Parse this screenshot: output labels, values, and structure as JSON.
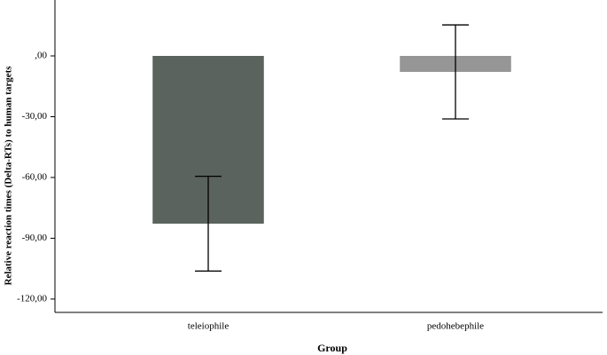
{
  "chart_data": {
    "type": "bar",
    "y_label": "Relative reaction times (Delta-RTs) to human targets",
    "x_label": "Group",
    "categories": [
      "teleiophile",
      "pedohebephile"
    ],
    "values": [
      -82.8,
      -7.9
    ],
    "errors": [
      23.4,
      23.2
    ],
    "colors": [
      "#5a635d",
      "#969696"
    ],
    "ylim": [
      -126.6,
      27.6
    ],
    "yticks": [
      {
        "value": 0,
        "label": ",00"
      },
      {
        "value": -30,
        "label": "-30,00"
      },
      {
        "value": -60,
        "label": "-60,00"
      },
      {
        "value": -90,
        "label": "-90,00"
      },
      {
        "value": -120,
        "label": "-120,00"
      }
    ]
  }
}
